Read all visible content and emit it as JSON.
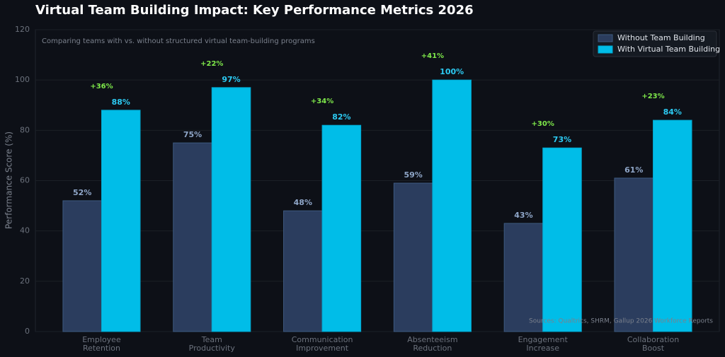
{
  "chart_data": {
    "type": "bar",
    "title": "Virtual Team Building Impact: Key Performance Metrics 2026",
    "subtitle": "Comparing teams with vs. without structured virtual team-building programs",
    "source": "Sources: Qualtrics, SHRM, Gallup 2026 Workforce Reports",
    "y_label": "Performance Score (%)",
    "categories": [
      "Employee Retention",
      "Team Productivity",
      "Communication Improvement",
      "Absenteeism Reduction",
      "Engagement Increase",
      "Collaboration Boost"
    ],
    "series": [
      {
        "name": "Without Team Building",
        "color": "#2b3d5e",
        "values": [
          52,
          75,
          48,
          59,
          43,
          61
        ],
        "value_labels": [
          "52%",
          "75%",
          "48%",
          "59%",
          "43%",
          "61%"
        ]
      },
      {
        "name": "With Virtual Team Building",
        "color": "#00bde8",
        "values": [
          88,
          97,
          82,
          100,
          73,
          84
        ],
        "value_labels": [
          "88%",
          "97%",
          "82%",
          "100%",
          "73%",
          "84%"
        ]
      }
    ],
    "differences": [
      "+36%",
      "+22%",
      "+34%",
      "+41%",
      "+30%",
      "+23%"
    ],
    "ylim": [
      0,
      120
    ],
    "yticks": [
      0,
      20,
      40,
      60,
      80,
      100,
      120
    ],
    "grid": true,
    "legend": "upper right"
  }
}
